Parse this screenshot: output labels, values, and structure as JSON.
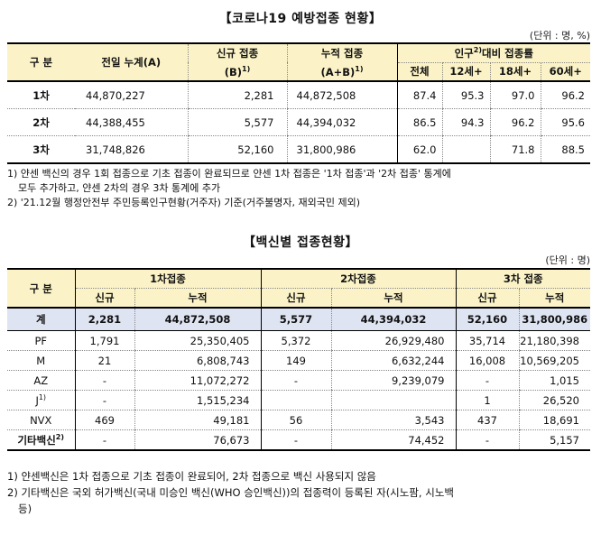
{
  "title1": "【코로나19 예방접종 현황】",
  "unit1": "(단위 : 명, %)",
  "table1": {
    "headers": {
      "category": "구 분",
      "prev": "전일 누계(A)",
      "new": "신규 접종",
      "new_sub": "(B)",
      "new_sup": "1)",
      "cum": "누적 접종",
      "cum_sub": "(A+B)",
      "cum_sup": "1)",
      "rate": "인구",
      "rate_sup": "2)",
      "rate_tail": "대비 접종률",
      "all": "전체",
      "age12": "12세+",
      "age18": "18세+",
      "age60": "60세+"
    },
    "rows": [
      {
        "label": "1차",
        "prev": "44,870,227",
        "new": "2,281",
        "cum": "44,872,508",
        "all": "87.4",
        "age12": "95.3",
        "age18": "97.0",
        "age60": "96.2"
      },
      {
        "label": "2차",
        "prev": "44,388,455",
        "new": "5,577",
        "cum": "44,394,032",
        "all": "86.5",
        "age12": "94.3",
        "age18": "96.2",
        "age60": "95.6"
      },
      {
        "label": "3차",
        "prev": "31,748,826",
        "new": "52,160",
        "cum": "31,800,986",
        "all": "62.0",
        "age12": "",
        "age18": "71.8",
        "age60": "88.5"
      }
    ]
  },
  "notes1": [
    "1) 얀센 백신의 경우 1회 접종으로 기초 접종이 완료되므로 얀센 1차 접종은 '1차 접종'과 '2차 접종' 통계에",
    "모두 추가하고, 얀센 2차의 경우 3차 통계에 추가",
    "2) '21.12월 행정안전부 주민등록인구현황(거주자) 기준(거주불명자, 재외국민 제외)"
  ],
  "title2": "【백신별 접종현황】",
  "unit2": "(단위 : 명)",
  "table2": {
    "headers": {
      "category": "구 분",
      "dose1": "1차접종",
      "dose2": "2차접종",
      "dose3": "3차 접종",
      "new": "신규",
      "cum": "누적"
    },
    "total": {
      "label": "계",
      "n1": "2,281",
      "c1": "44,872,508",
      "n2": "5,577",
      "c2": "44,394,032",
      "n3": "52,160",
      "c3": "31,800,986"
    },
    "rows": [
      {
        "label": "PF",
        "n1": "1,791",
        "c1": "25,350,405",
        "n2": "5,372",
        "c2": "26,929,480",
        "n3": "35,714",
        "c3": "21,180,398"
      },
      {
        "label": "M",
        "n1": "21",
        "c1": "6,808,743",
        "n2": "149",
        "c2": "6,632,244",
        "n3": "16,008",
        "c3": "10,569,205"
      },
      {
        "label": "AZ",
        "n1": "-",
        "c1": "11,072,272",
        "n2": "-",
        "c2": "9,239,079",
        "n3": "-",
        "c3": "1,015"
      },
      {
        "label": "J",
        "sup": "1)",
        "n1": "-",
        "c1": "1,515,234",
        "n2": "",
        "c2": "",
        "n3": "1",
        "c3": "26,520"
      },
      {
        "label": "NVX",
        "n1": "469",
        "c1": "49,181",
        "n2": "56",
        "c2": "3,543",
        "n3": "437",
        "c3": "18,691"
      },
      {
        "label": "기타백신",
        "sup": "2)",
        "n1": "-",
        "c1": "76,673",
        "n2": "-",
        "c2": "74,452",
        "n3": "-",
        "c3": "5,157"
      }
    ]
  },
  "notes2": [
    "1) 얀센백신은 1차 접종으로 기초 접종이 완료되어, 2차 접종으로 백신 사용되지 않음",
    "2) 기타백신은 국외 허가백신(국내 미승인 백신(WHO 승인백신))의 접종력이 등록된 자(시노팜, 시노백",
    "등)"
  ]
}
